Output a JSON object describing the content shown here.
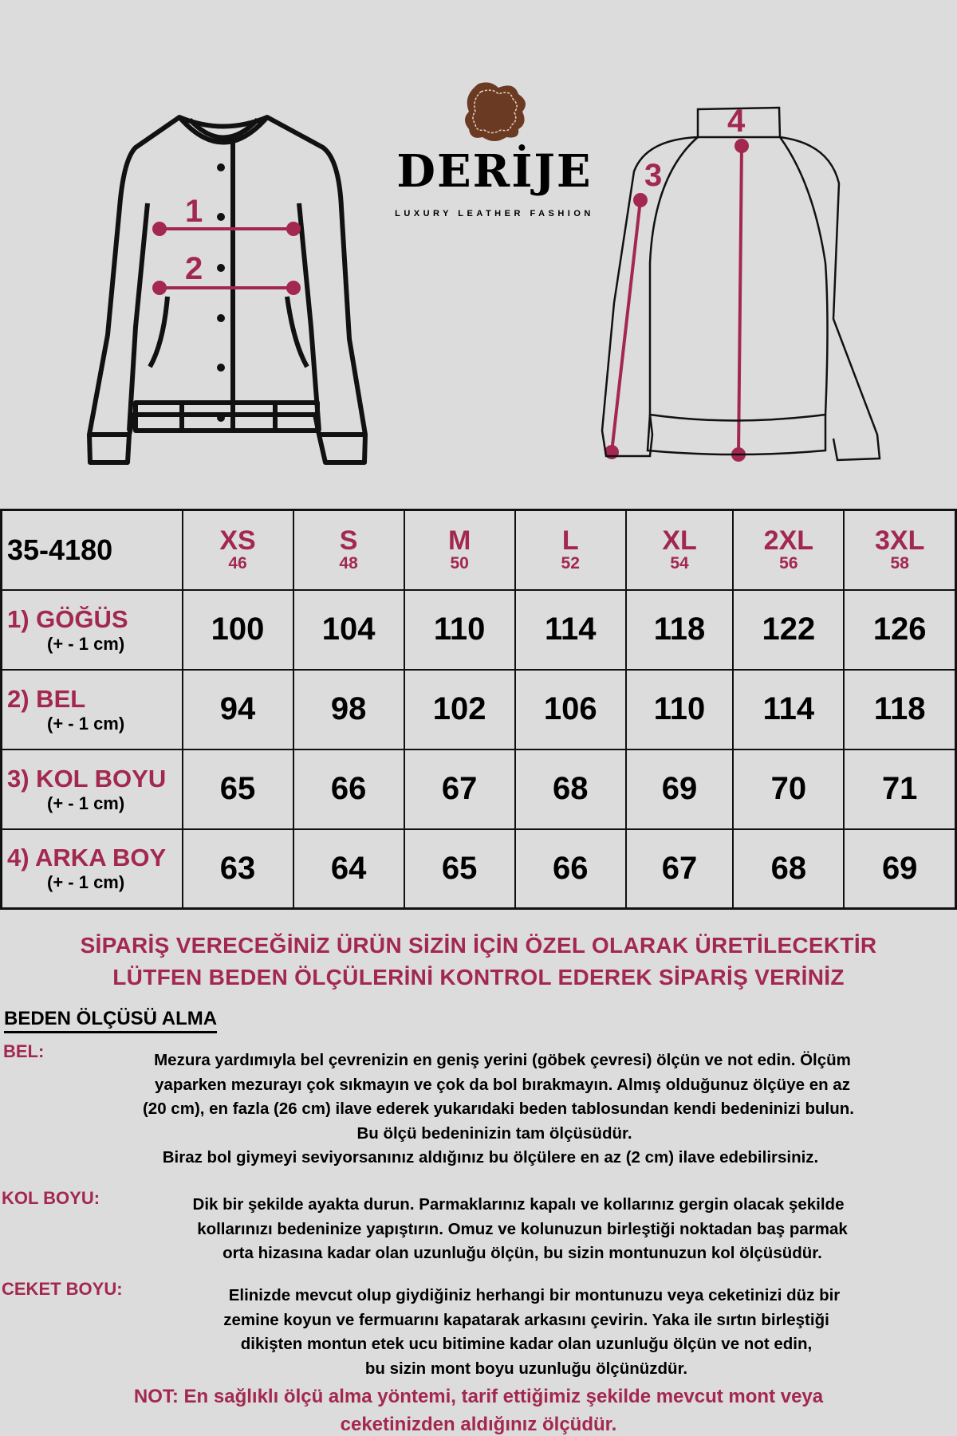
{
  "brand": {
    "name": "DERİJE",
    "tagline": "LUXURY LEATHER FASHION",
    "leather_color": "#6b3a22"
  },
  "colors": {
    "accent": "#a3284f",
    "background": "#dcdcdc"
  },
  "diagram_labels": [
    "1",
    "2",
    "3",
    "4"
  ],
  "table": {
    "code": "35-4180",
    "sizes": [
      {
        "name": "XS",
        "eu": "46"
      },
      {
        "name": "S",
        "eu": "48"
      },
      {
        "name": "M",
        "eu": "50"
      },
      {
        "name": "L",
        "eu": "52"
      },
      {
        "name": "XL",
        "eu": "54"
      },
      {
        "name": "2XL",
        "eu": "56"
      },
      {
        "name": "3XL",
        "eu": "58"
      }
    ],
    "rows": [
      {
        "label": "1) GÖĞÜS",
        "tolerance": "(+ - 1 cm)",
        "values": [
          "100",
          "104",
          "110",
          "114",
          "118",
          "122",
          "126"
        ]
      },
      {
        "label": "2) BEL",
        "tolerance": "(+ - 1 cm)",
        "values": [
          "94",
          "98",
          "102",
          "106",
          "110",
          "114",
          "118"
        ]
      },
      {
        "label": "3) KOL BOYU",
        "tolerance": "(+ - 1 cm)",
        "values": [
          "65",
          "66",
          "67",
          "68",
          "69",
          "70",
          "71"
        ]
      },
      {
        "label": "4) ARKA BOY",
        "tolerance": "(+ - 1 cm)",
        "values": [
          "63",
          "64",
          "65",
          "66",
          "67",
          "68",
          "69"
        ]
      }
    ]
  },
  "warning": [
    "SİPARİŞ VERECEĞİNİZ ÜRÜN SİZİN İÇİN ÖZEL OLARAK ÜRETİLECEKTİR",
    "LÜTFEN BEDEN ÖLÇÜLERİNİ KONTROL EDEREK SİPARİŞ VERİNİZ"
  ],
  "guide": {
    "heading": "BEDEN ÖLÇÜSÜ ALMA",
    "bel": {
      "label": "BEL:",
      "lines": [
        "Mezura yardımıyla bel çevrenizin en geniş yerini (göbek çevresi) ölçün ve not edin. Ölçüm",
        "yaparken mezurayı çok sıkmayın ve çok da bol bırakmayın. Almış olduğunuz ölçüye en az",
        "(20 cm), en fazla (26 cm) ilave ederek yukarıdaki beden tablosundan kendi bedeninizi bulun.",
        "Bu ölçü bedeninizin tam ölçüsüdür.",
        "Biraz bol giymeyi seviyorsanınız aldığınız bu ölçülere en az (2 cm) ilave edebilirsiniz."
      ]
    },
    "kol": {
      "label": "KOL BOYU:",
      "lines": [
        "Dik bir şekilde ayakta durun. Parmaklarınız kapalı ve kollarınız gergin olacak şekilde",
        "kollarınızı bedeninize yapıştırın. Omuz ve kolunuzun birleştiği noktadan baş parmak",
        "orta hizasına kadar olan uzunluğu ölçün, bu sizin montunuzun kol ölçüsüdür."
      ]
    },
    "ceket": {
      "label": "CEKET BOYU:",
      "lines": [
        "Elinizde mevcut olup giydiğiniz herhangi bir montunuzu veya ceketinizi düz bir",
        "zemine koyun ve fermuarını kapatarak arkasını çevirin. Yaka ile sırtın birleştiği",
        "dikişten montun etek ucu bitimine kadar olan uzunluğu ölçün ve not edin,",
        "bu sizin mont boyu uzunluğu ölçünüzdür."
      ]
    },
    "note": [
      "NOT: En sağlıklı ölçü alma yöntemi, tarif ettiğimiz şekilde mevcut mont veya",
      "ceketinizden aldığınız ölçüdür."
    ]
  }
}
